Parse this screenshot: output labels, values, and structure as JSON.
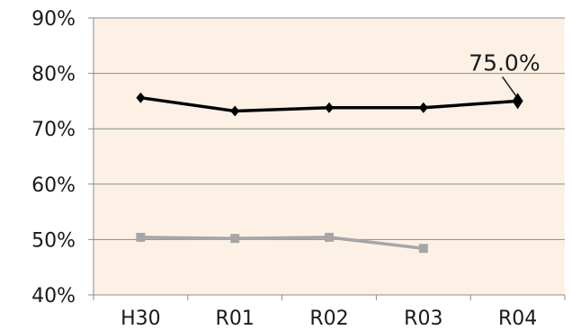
{
  "chart_data": {
    "type": "line",
    "title": "",
    "xlabel": "",
    "ylabel": "",
    "categories": [
      "H30",
      "R01",
      "R02",
      "R03",
      "R04"
    ],
    "yticks": [
      "40%",
      "50%",
      "60%",
      "70%",
      "80%",
      "90%"
    ],
    "ylim": [
      40,
      90
    ],
    "grid": true,
    "legend": "none",
    "plot_background": "#fdf1e6",
    "series": [
      {
        "values": [
          75.6,
          73.2,
          73.8,
          73.8,
          75.0
        ],
        "color": "#000000",
        "marker": "diamond",
        "annotation": {
          "index": 4,
          "text": "75.0%"
        }
      },
      {
        "values": [
          50.4,
          50.2,
          50.4,
          48.4,
          null
        ],
        "color": "#a6a6a6",
        "marker": "square"
      }
    ]
  }
}
